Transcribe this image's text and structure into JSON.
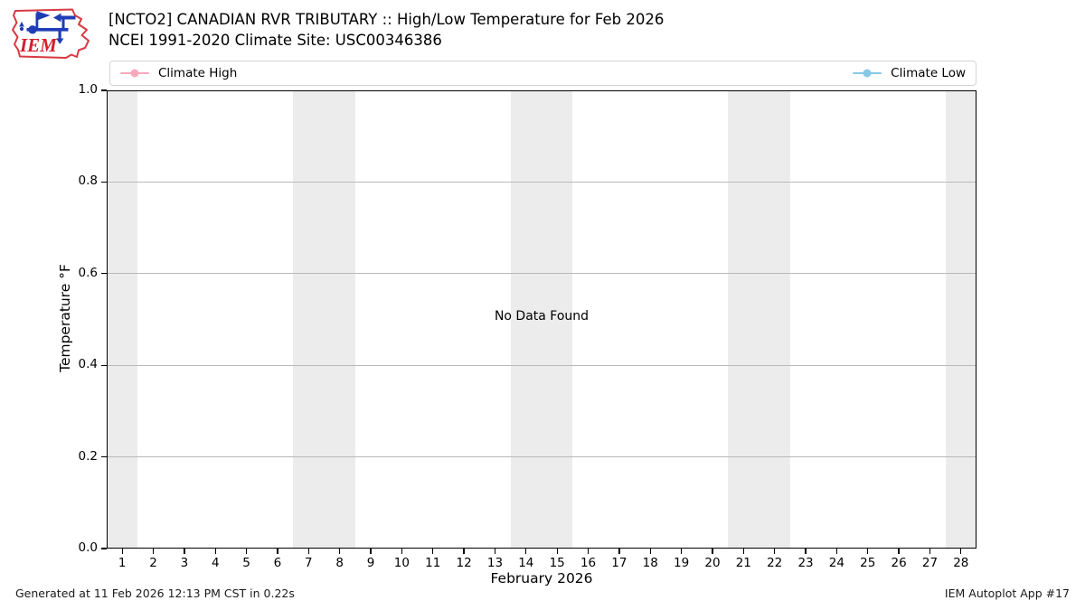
{
  "header": {
    "logo_text": "IEM"
  },
  "footer": {
    "generated": "Generated at 11 Feb 2026 12:13 PM CST in 0.22s",
    "app_label": "IEM Autoplot App #17"
  },
  "chart_data": {
    "type": "line",
    "title": "[NCTO2] CANADIAN RVR TRIBUTARY :: High/Low Temperature for Feb 2026",
    "subtitle": "NCEI 1991-2020 Climate Site: USC00346386",
    "xlabel": "February 2026",
    "ylabel": "Temperature °F",
    "xlim": [
      0.5,
      28.5
    ],
    "ylim": [
      0.0,
      1.0
    ],
    "x_ticks": [
      1,
      2,
      3,
      4,
      5,
      6,
      7,
      8,
      9,
      10,
      11,
      12,
      13,
      14,
      15,
      16,
      17,
      18,
      19,
      20,
      21,
      22,
      23,
      24,
      25,
      26,
      27,
      28
    ],
    "y_ticks": [
      "0.0",
      "0.2",
      "0.4",
      "0.6",
      "0.8",
      "1.0"
    ],
    "grid": "horizontal gridlines only",
    "legend_position": "full-width bar above plot; high at left, low at right",
    "series": [
      {
        "name": "Climate High",
        "color": "#f9a8ba",
        "x": [],
        "values": []
      },
      {
        "name": "Climate Low",
        "color": "#85c9e6",
        "x": [],
        "values": []
      }
    ],
    "no_data_message": "No Data Found",
    "weekend_bands": [
      [
        0.5,
        1.5
      ],
      [
        6.5,
        8.5
      ],
      [
        13.5,
        15.5
      ],
      [
        20.5,
        22.5
      ],
      [
        27.5,
        28.5
      ]
    ],
    "band_color": "#ececec"
  }
}
